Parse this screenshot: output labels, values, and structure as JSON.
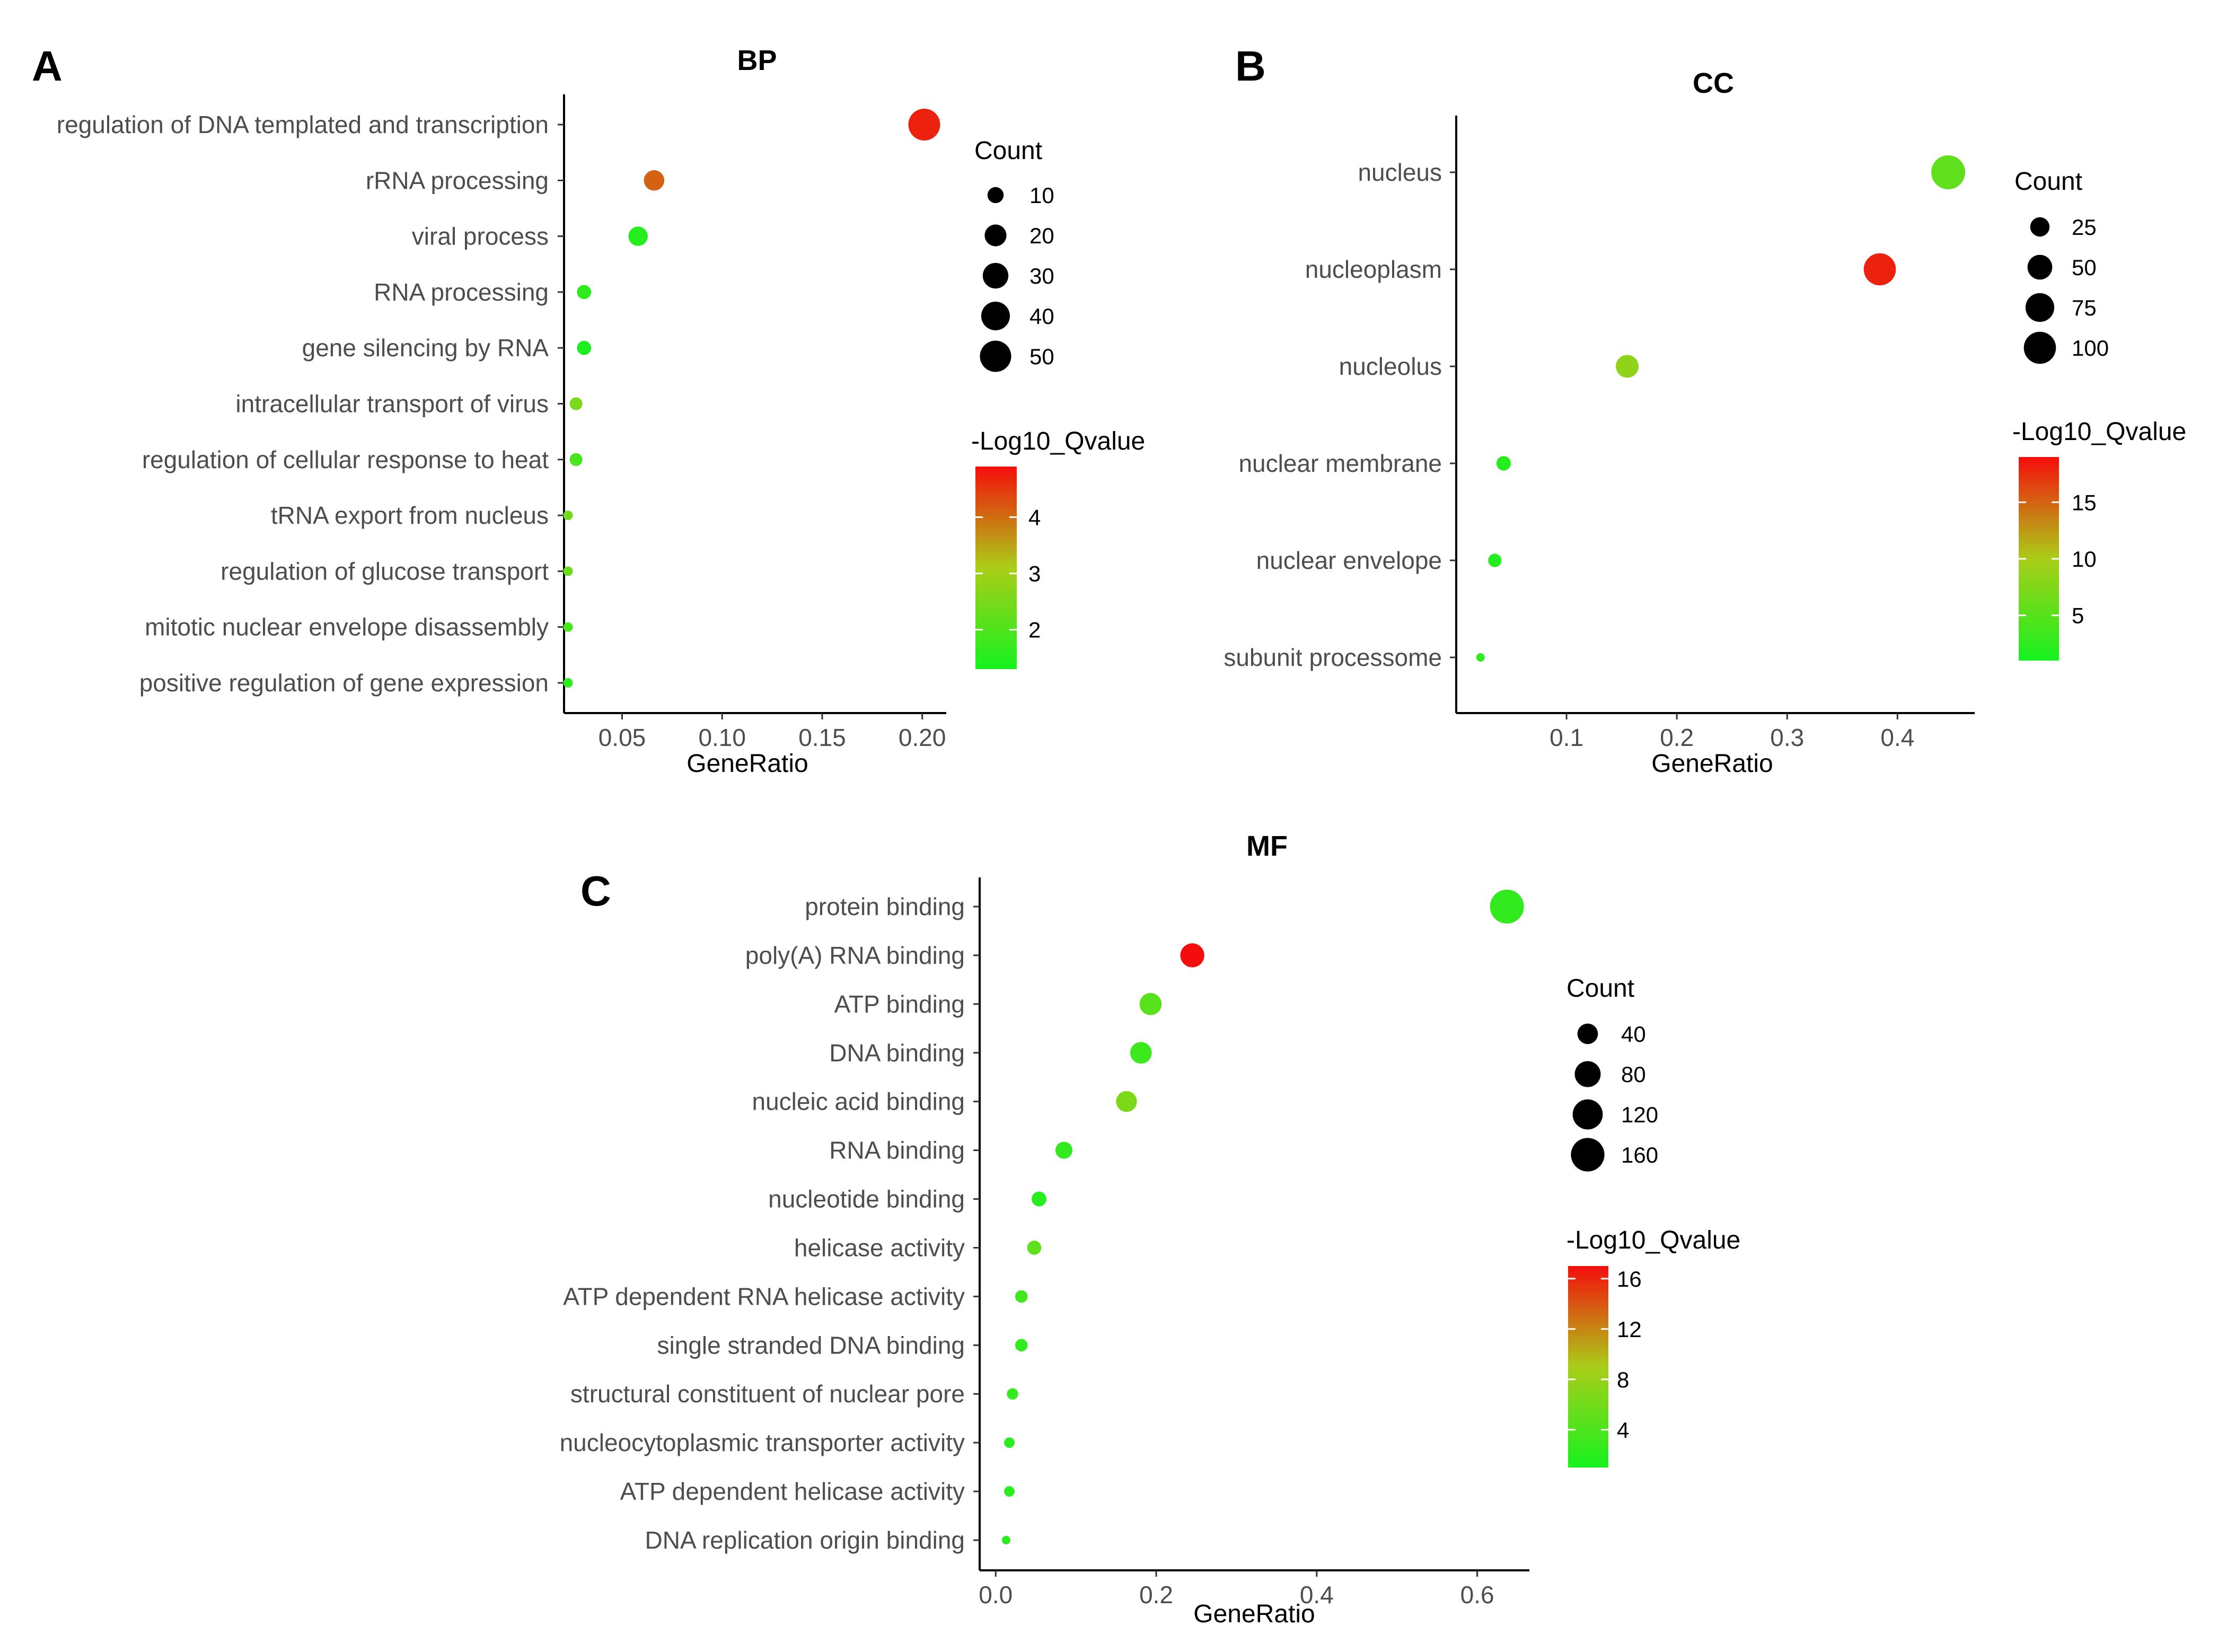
{
  "chart_data": [
    {
      "panel": "A",
      "type": "scatter",
      "title": "BP",
      "xlabel": "GeneRatio",
      "ylabel": "",
      "xlim": [
        0.021,
        0.212
      ],
      "xticks": [
        "0.05",
        "0.10",
        "0.15",
        "0.20"
      ],
      "x_tick_values": [
        0.05,
        0.1,
        0.15,
        0.2
      ],
      "categories": [
        "regulation of DNA templated and transcription",
        "rRNA processing",
        "viral process",
        "RNA processing",
        "gene silencing by RNA",
        "intracellular transport of virus",
        "regulation of cellular response to heat",
        "tRNA export from nucleus",
        "regulation of glucose transport",
        "mitotic nuclear envelope disassembly",
        "positive regulation of gene expression"
      ],
      "points": [
        {
          "term": "regulation of DNA templated and transcription",
          "gene_ratio": 0.201,
          "count": 52,
          "neg_log10_q": 4.7
        },
        {
          "term": "rRNA processing",
          "gene_ratio": 0.066,
          "count": 17,
          "neg_log10_q": 4.1
        },
        {
          "term": "viral process",
          "gene_ratio": 0.058,
          "count": 15,
          "neg_log10_q": 1.5
        },
        {
          "term": "RNA processing",
          "gene_ratio": 0.031,
          "count": 8,
          "neg_log10_q": 1.6
        },
        {
          "term": "gene silencing by RNA",
          "gene_ratio": 0.031,
          "count": 8,
          "neg_log10_q": 1.4
        },
        {
          "term": "intracellular transport of virus",
          "gene_ratio": 0.027,
          "count": 7,
          "neg_log10_q": 2.5
        },
        {
          "term": "regulation of cellular response to heat",
          "gene_ratio": 0.027,
          "count": 7,
          "neg_log10_q": 1.9
        },
        {
          "term": "tRNA export from nucleus",
          "gene_ratio": 0.023,
          "count": 6,
          "neg_log10_q": 2.4
        },
        {
          "term": "regulation of glucose transport",
          "gene_ratio": 0.023,
          "count": 6,
          "neg_log10_q": 2.3
        },
        {
          "term": "mitotic nuclear envelope disassembly",
          "gene_ratio": 0.023,
          "count": 6,
          "neg_log10_q": 1.9
        },
        {
          "term": "positive regulation of gene expression",
          "gene_ratio": 0.023,
          "count": 6,
          "neg_log10_q": 1.6
        }
      ],
      "size_legend": {
        "title": "Count",
        "values": [
          10,
          20,
          30,
          40,
          50
        ],
        "labels": [
          "10",
          "20",
          "30",
          "40",
          "50"
        ],
        "min": 6,
        "max": 52
      },
      "color_legend": {
        "title": "-Log10_Qvalue",
        "range": [
          1.3,
          4.9
        ],
        "ticks": [
          4,
          3,
          2
        ],
        "labels": [
          "4",
          "3",
          "2"
        ]
      }
    },
    {
      "panel": "B",
      "type": "scatter",
      "title": "CC",
      "xlabel": "GeneRatio",
      "ylabel": "",
      "xlim": [
        0.0,
        0.47
      ],
      "xticks": [
        "0.1",
        "0.2",
        "0.3",
        "0.4"
      ],
      "x_tick_values": [
        0.1,
        0.2,
        0.3,
        0.4
      ],
      "categories": [
        "nucleus",
        "nucleoplasm",
        "nucleolus",
        "nuclear membrane",
        "nuclear envelope",
        "subunit processome"
      ],
      "points": [
        {
          "term": "nucleus",
          "gene_ratio": 0.446,
          "count": 115,
          "neg_log10_q": 5.5
        },
        {
          "term": "nucleoplasm",
          "gene_ratio": 0.384,
          "count": 100,
          "neg_log10_q": 18.0
        },
        {
          "term": "nucleolus",
          "gene_ratio": 0.155,
          "count": 40,
          "neg_log10_q": 8.5
        },
        {
          "term": "nuclear membrane",
          "gene_ratio": 0.043,
          "count": 11,
          "neg_log10_q": 2.0
        },
        {
          "term": "nuclear envelope",
          "gene_ratio": 0.035,
          "count": 9,
          "neg_log10_q": 2.0
        },
        {
          "term": "subunit processome",
          "gene_ratio": 0.022,
          "count": 5,
          "neg_log10_q": 2.5
        }
      ],
      "size_legend": {
        "title": "Count",
        "values": [
          25,
          50,
          75,
          100
        ],
        "labels": [
          "25",
          "50",
          "75",
          "100"
        ],
        "min": 5,
        "max": 115
      },
      "color_legend": {
        "title": "-Log10_Qvalue",
        "range": [
          1.0,
          19.0
        ],
        "ticks": [
          15,
          10,
          5
        ],
        "labels": [
          "15",
          "10",
          "5"
        ]
      }
    },
    {
      "panel": "C",
      "type": "scatter",
      "title": "MF",
      "xlabel": "GeneRatio",
      "ylabel": "",
      "xlim": [
        -0.02,
        0.665
      ],
      "xticks": [
        "0.0",
        "0.2",
        "0.4",
        "0.6"
      ],
      "x_tick_values": [
        0.0,
        0.2,
        0.4,
        0.6
      ],
      "categories": [
        "protein binding",
        "poly(A) RNA binding",
        "ATP binding",
        "DNA binding",
        "nucleic acid binding",
        "RNA binding",
        "nucleotide binding",
        "helicase activity",
        "ATP dependent RNA helicase activity",
        "single stranded DNA binding",
        "structural constituent of nuclear pore",
        "nucleocytoplasmic transporter activity",
        "ATP dependent helicase activity",
        "DNA replication origin binding"
      ],
      "points": [
        {
          "term": "protein binding",
          "gene_ratio": 0.637,
          "count": 165,
          "neg_log10_q": 2.5
        },
        {
          "term": "poly(A) RNA binding",
          "gene_ratio": 0.245,
          "count": 64,
          "neg_log10_q": 17.0
        },
        {
          "term": "ATP binding",
          "gene_ratio": 0.193,
          "count": 50,
          "neg_log10_q": 4.5
        },
        {
          "term": "DNA binding",
          "gene_ratio": 0.181,
          "count": 47,
          "neg_log10_q": 3.0
        },
        {
          "term": "nucleic acid binding",
          "gene_ratio": 0.163,
          "count": 42,
          "neg_log10_q": 6.5
        },
        {
          "term": "RNA binding",
          "gene_ratio": 0.085,
          "count": 22,
          "neg_log10_q": 2.5
        },
        {
          "term": "nucleotide binding",
          "gene_ratio": 0.054,
          "count": 14,
          "neg_log10_q": 2.0
        },
        {
          "term": "helicase activity",
          "gene_ratio": 0.048,
          "count": 12,
          "neg_log10_q": 5.0
        },
        {
          "term": "ATP dependent RNA helicase activity",
          "gene_ratio": 0.032,
          "count": 8,
          "neg_log10_q": 3.5
        },
        {
          "term": "single stranded DNA binding",
          "gene_ratio": 0.032,
          "count": 8,
          "neg_log10_q": 2.5
        },
        {
          "term": "structural constituent of nuclear pore",
          "gene_ratio": 0.021,
          "count": 6,
          "neg_log10_q": 2.5
        },
        {
          "term": "nucleocytoplasmic transporter activity",
          "gene_ratio": 0.017,
          "count": 5,
          "neg_log10_q": 2.0
        },
        {
          "term": "ATP dependent helicase activity",
          "gene_ratio": 0.017,
          "count": 5,
          "neg_log10_q": 2.0
        },
        {
          "term": "DNA replication origin binding",
          "gene_ratio": 0.013,
          "count": 4,
          "neg_log10_q": 2.0
        }
      ],
      "size_legend": {
        "title": "Count",
        "values": [
          40,
          80,
          120,
          160
        ],
        "labels": [
          "40",
          "80",
          "120",
          "160"
        ],
        "min": 4,
        "max": 165
      },
      "color_legend": {
        "title": "-Log10_Qvalue",
        "range": [
          1.0,
          17.0
        ],
        "ticks": [
          16,
          12,
          8,
          4
        ],
        "labels": [
          "16",
          "12",
          "8",
          "4"
        ]
      }
    }
  ],
  "colors": {
    "low": "#16f21f",
    "mid": "#aacd18",
    "high": "#f50d0d",
    "axis": "#000000",
    "label": "#4d4d4d"
  }
}
